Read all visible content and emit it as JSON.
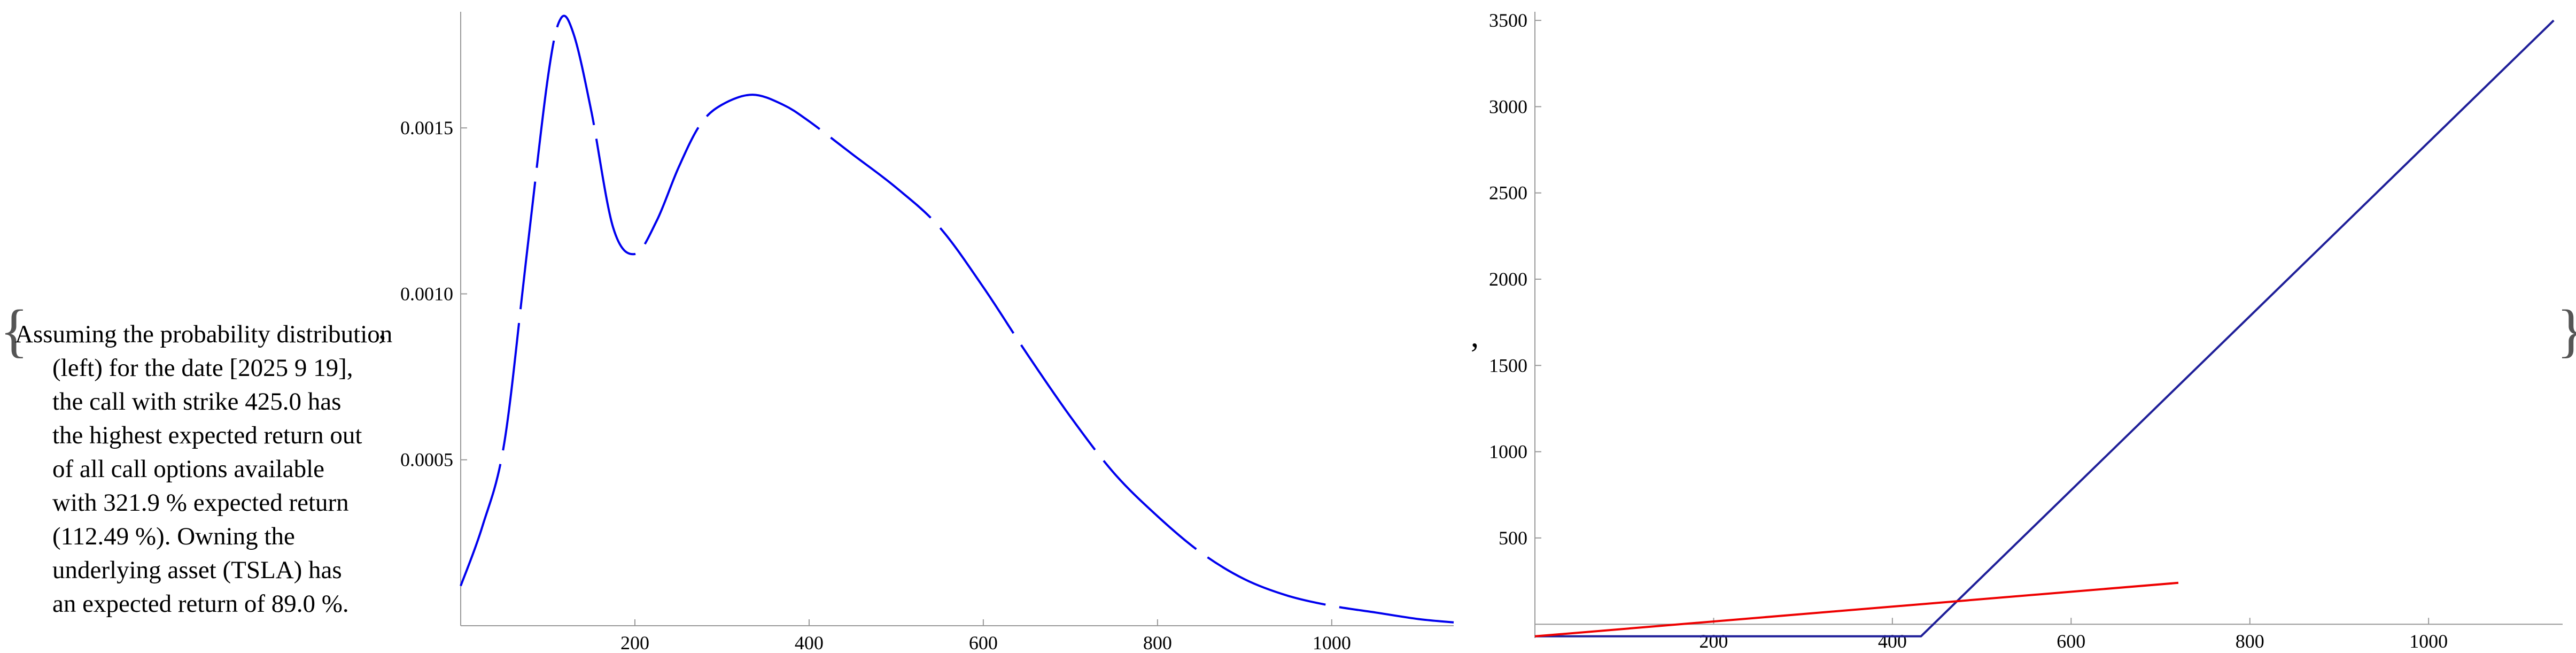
{
  "outer_brace_open": "{",
  "outer_brace_close": "}",
  "separator_comma": ",",
  "description": {
    "lines": [
      "Assuming the probability distribution",
      "(left) for the date [2025 9 19],",
      "the call with strike 425.0 has",
      "the highest expected return out",
      "of all call options available",
      "with 321.9 % expected return",
      "(112.49 %). Owning the",
      "underlying asset (TSLA) has",
      "an expected return of 89.0 %."
    ],
    "trailing_comma": ","
  },
  "colors": {
    "density_curve": "#0000ee",
    "call_payoff": "#1f1f99",
    "stock_return": "#ee0000",
    "axis": "#999999",
    "text": "#000000"
  },
  "chart_data": [
    {
      "type": "line",
      "title": "",
      "xlabel": "",
      "ylabel": "",
      "xlim": [
        0,
        1140
      ],
      "ylim": [
        0,
        0.00185
      ],
      "x_ticks": [
        200,
        400,
        600,
        800,
        1000
      ],
      "x_tick_labels": [
        "200",
        "400",
        "600",
        "800",
        "1000"
      ],
      "y_ticks": [
        0.0005,
        0.001,
        0.0015
      ],
      "y_tick_labels": [
        "0.0005",
        "0.0010",
        "0.0015"
      ],
      "grid": false,
      "dashed_segments": true,
      "series": [
        {
          "color": "#0000ee",
          "x": [
            0,
            25,
            50,
            75,
            100,
            115,
            130,
            150,
            175,
            200,
            225,
            250,
            275,
            300,
            335,
            370,
            400,
            450,
            500,
            550,
            600,
            650,
            700,
            750,
            800,
            850,
            900,
            950,
            1000,
            1050,
            1100,
            1140
          ],
          "y": [
            0.00012,
            0.0003,
            0.00055,
            0.0011,
            0.00165,
            0.00183,
            0.00178,
            0.00155,
            0.0012,
            0.00112,
            0.00122,
            0.00138,
            0.00151,
            0.00157,
            0.0016,
            0.00157,
            0.00152,
            0.00142,
            0.00132,
            0.0012,
            0.00102,
            0.00082,
            0.00063,
            0.00046,
            0.00033,
            0.00022,
            0.00014,
            9e-05,
            6e-05,
            4e-05,
            2e-05,
            1e-05
          ]
        }
      ]
    },
    {
      "type": "line",
      "title": "",
      "xlabel": "",
      "ylabel": "",
      "xlim": [
        0,
        1150
      ],
      "ylim": [
        -80,
        3550
      ],
      "x_ticks": [
        200,
        400,
        600,
        800,
        1000
      ],
      "x_tick_labels": [
        "200",
        "400",
        "600",
        "800",
        "1000"
      ],
      "y_ticks": [
        500,
        1000,
        1500,
        2000,
        2500,
        3000,
        3500
      ],
      "y_tick_labels": [
        "500",
        "1000",
        "1500",
        "2000",
        "2500",
        "3000",
        "3500"
      ],
      "grid": false,
      "series": [
        {
          "color": "#1f1f99",
          "x": [
            0,
            432,
            1140
          ],
          "y": [
            -70,
            -70,
            3500
          ]
        },
        {
          "color": "#ee0000",
          "x": [
            0,
            720
          ],
          "y": [
            -70,
            240
          ]
        }
      ]
    }
  ]
}
